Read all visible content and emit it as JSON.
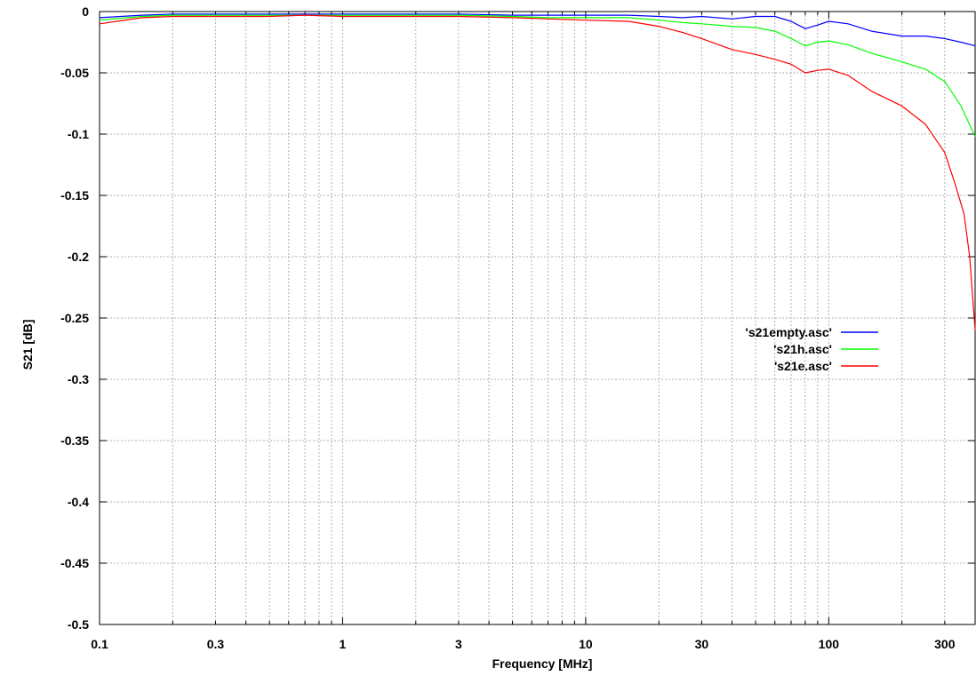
{
  "chart_data": {
    "type": "line",
    "title": "",
    "xlabel": "Frequency [MHz]",
    "ylabel": "S21 [dB]",
    "xscale": "log",
    "xlim": [
      0.1,
      400
    ],
    "ylim": [
      -0.5,
      0
    ],
    "grid": true,
    "legend_position": "right-middle",
    "x_ticks": [
      {
        "value": 0.1,
        "label": "0.1"
      },
      {
        "value": 0.3,
        "label": "0.3"
      },
      {
        "value": 1,
        "label": "1"
      },
      {
        "value": 3,
        "label": "3"
      },
      {
        "value": 10,
        "label": "10"
      },
      {
        "value": 30,
        "label": "30"
      },
      {
        "value": 100,
        "label": "100"
      },
      {
        "value": 300,
        "label": "300"
      }
    ],
    "y_ticks": [
      {
        "value": 0,
        "label": "0"
      },
      {
        "value": -0.05,
        "label": "-0.05"
      },
      {
        "value": -0.1,
        "label": "-0.1"
      },
      {
        "value": -0.15,
        "label": "-0.15"
      },
      {
        "value": -0.2,
        "label": "-0.2"
      },
      {
        "value": -0.25,
        "label": "-0.25"
      },
      {
        "value": -0.3,
        "label": "-0.3"
      },
      {
        "value": -0.35,
        "label": "-0.35"
      },
      {
        "value": -0.4,
        "label": "-0.4"
      },
      {
        "value": -0.45,
        "label": "-0.45"
      },
      {
        "value": -0.5,
        "label": "-0.5"
      }
    ],
    "series": [
      {
        "name": "'s21empty.asc'",
        "color": "#0000ff",
        "x": [
          0.1,
          0.15,
          0.2,
          0.3,
          0.5,
          0.7,
          1,
          1.5,
          2,
          3,
          5,
          7,
          10,
          15,
          20,
          25,
          30,
          40,
          50,
          60,
          70,
          80,
          90,
          100,
          120,
          150,
          200,
          250,
          300,
          350,
          400
        ],
        "y": [
          -0.005,
          -0.003,
          -0.002,
          -0.002,
          -0.002,
          -0.002,
          -0.002,
          -0.002,
          -0.002,
          -0.002,
          -0.003,
          -0.003,
          -0.003,
          -0.003,
          -0.004,
          -0.005,
          -0.004,
          -0.006,
          -0.004,
          -0.004,
          -0.008,
          -0.014,
          -0.011,
          -0.008,
          -0.01,
          -0.016,
          -0.02,
          -0.02,
          -0.022,
          -0.025,
          -0.028
        ]
      },
      {
        "name": "'s21h.asc'",
        "color": "#00ff00",
        "x": [
          0.1,
          0.15,
          0.2,
          0.3,
          0.5,
          0.7,
          1,
          1.5,
          2,
          3,
          5,
          7,
          10,
          15,
          20,
          25,
          30,
          40,
          50,
          60,
          70,
          80,
          90,
          100,
          120,
          150,
          200,
          250,
          300,
          350,
          400
        ],
        "y": [
          -0.007,
          -0.004,
          -0.003,
          -0.003,
          -0.003,
          -0.003,
          -0.003,
          -0.003,
          -0.003,
          -0.003,
          -0.004,
          -0.005,
          -0.005,
          -0.005,
          -0.007,
          -0.009,
          -0.01,
          -0.012,
          -0.013,
          -0.016,
          -0.022,
          -0.028,
          -0.025,
          -0.024,
          -0.027,
          -0.034,
          -0.041,
          -0.047,
          -0.057,
          -0.077,
          -0.102
        ]
      },
      {
        "name": "'s21e.asc'",
        "color": "#ff0000",
        "x": [
          0.1,
          0.15,
          0.2,
          0.3,
          0.5,
          0.7,
          1,
          1.5,
          2,
          3,
          5,
          7,
          10,
          15,
          20,
          25,
          30,
          40,
          50,
          60,
          70,
          80,
          90,
          100,
          120,
          150,
          200,
          250,
          300,
          330,
          360,
          380,
          400
        ],
        "y": [
          -0.01,
          -0.005,
          -0.004,
          -0.004,
          -0.004,
          -0.003,
          -0.004,
          -0.004,
          -0.004,
          -0.004,
          -0.005,
          -0.006,
          -0.007,
          -0.008,
          -0.012,
          -0.017,
          -0.022,
          -0.031,
          -0.035,
          -0.039,
          -0.043,
          -0.05,
          -0.048,
          -0.047,
          -0.052,
          -0.065,
          -0.077,
          -0.092,
          -0.115,
          -0.14,
          -0.165,
          -0.2,
          -0.26
        ]
      }
    ]
  }
}
